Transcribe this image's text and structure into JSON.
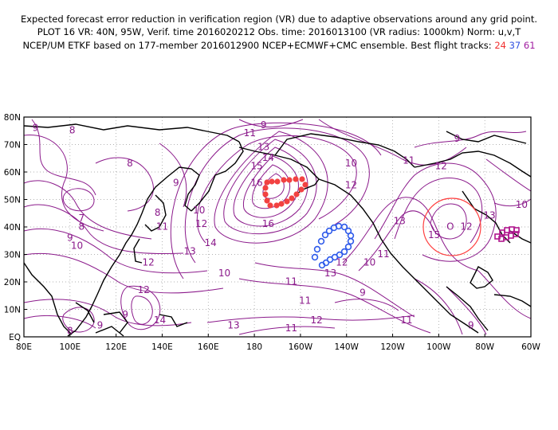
{
  "header": {
    "line1": "Expected forecast error reduction in verification region (VR) due to adaptive observations around any grid point.",
    "line2": "PLOT 16 VR: 40N, 95W, Verif. time 2016020212 Obs. time: 2016013100 (VR radius: 1000km) Norm: u,v,T",
    "line3_prefix": "NCEP/UM ETKF based on 177-member 2016012900 NCEP+ECMWF+CMC ensemble. Best flight tracks:",
    "track_a": "24",
    "track_b": "37",
    "track_c": "61"
  },
  "axes": {
    "y_labels": [
      "80N",
      "70N",
      "60N",
      "50N",
      "40N",
      "30N",
      "20N",
      "10N",
      "EQ"
    ],
    "x_labels": [
      "80E",
      "100E",
      "120E",
      "140E",
      "160E",
      "180",
      "160W",
      "140W",
      "120W",
      "100W",
      "80W",
      "60W"
    ]
  },
  "contour_labels": [
    {
      "t": "9",
      "lon": 85,
      "lat": 75
    },
    {
      "t": "8",
      "lon": 101,
      "lat": 74
    },
    {
      "t": "9",
      "lon": 184,
      "lat": 76
    },
    {
      "t": "11",
      "lon": 178,
      "lat": 73
    },
    {
      "t": "13",
      "lon": 184,
      "lat": 68
    },
    {
      "t": "14",
      "lon": 186,
      "lat": 64
    },
    {
      "t": "15",
      "lon": 181,
      "lat": 61
    },
    {
      "t": "16",
      "lon": 181,
      "lat": 55
    },
    {
      "t": "10",
      "lon": 222,
      "lat": 62
    },
    {
      "t": "11",
      "lon": 247,
      "lat": 63
    },
    {
      "t": "12",
      "lon": 261,
      "lat": 61
    },
    {
      "t": "12",
      "lon": 222,
      "lat": 54
    },
    {
      "t": "9",
      "lon": 268,
      "lat": 71
    },
    {
      "t": "8",
      "lon": 126,
      "lat": 62
    },
    {
      "t": "9",
      "lon": 146,
      "lat": 55
    },
    {
      "t": "10",
      "lon": 156,
      "lat": 45
    },
    {
      "t": "12",
      "lon": 157,
      "lat": 40
    },
    {
      "t": "7",
      "lon": 105,
      "lat": 42
    },
    {
      "t": "8",
      "lon": 105,
      "lat": 39
    },
    {
      "t": "9",
      "lon": 100,
      "lat": 35
    },
    {
      "t": "10",
      "lon": 103,
      "lat": 32
    },
    {
      "t": "8",
      "lon": 138,
      "lat": 44
    },
    {
      "t": "11",
      "lon": 140,
      "lat": 39
    },
    {
      "t": "14",
      "lon": 161,
      "lat": 33
    },
    {
      "t": "13",
      "lon": 152,
      "lat": 30
    },
    {
      "t": "12",
      "lon": 134,
      "lat": 26
    },
    {
      "t": "16",
      "lon": 186,
      "lat": 40
    },
    {
      "t": "10",
      "lon": 167,
      "lat": 22
    },
    {
      "t": "12",
      "lon": 132,
      "lat": 16
    },
    {
      "t": "11",
      "lon": 196,
      "lat": 19
    },
    {
      "t": "11",
      "lon": 202,
      "lat": 12
    },
    {
      "t": "12",
      "lon": 218,
      "lat": 26
    },
    {
      "t": "13",
      "lon": 213,
      "lat": 22
    },
    {
      "t": "10",
      "lon": 230,
      "lat": 26
    },
    {
      "t": "11",
      "lon": 236,
      "lat": 29
    },
    {
      "t": "9",
      "lon": 227,
      "lat": 15
    },
    {
      "t": "13",
      "lon": 243,
      "lat": 41
    },
    {
      "t": "15",
      "lon": 258,
      "lat": 36
    },
    {
      "t": "12",
      "lon": 272,
      "lat": 39
    },
    {
      "t": "13",
      "lon": 282,
      "lat": 43
    },
    {
      "t": "10",
      "lon": 296,
      "lat": 47
    },
    {
      "t": "14",
      "lon": 139,
      "lat": 5
    },
    {
      "t": "13",
      "lon": 171,
      "lat": 3
    },
    {
      "t": "11",
      "lon": 196,
      "lat": 2
    },
    {
      "t": "12",
      "lon": 207,
      "lat": 5
    },
    {
      "t": "11",
      "lon": 246,
      "lat": 5
    },
    {
      "t": "9",
      "lon": 274,
      "lat": 3
    },
    {
      "t": "9",
      "lon": 113,
      "lat": 3
    },
    {
      "t": "8",
      "lon": 100,
      "lat": 1
    },
    {
      "t": "9",
      "lon": 124,
      "lat": 7
    }
  ]
}
